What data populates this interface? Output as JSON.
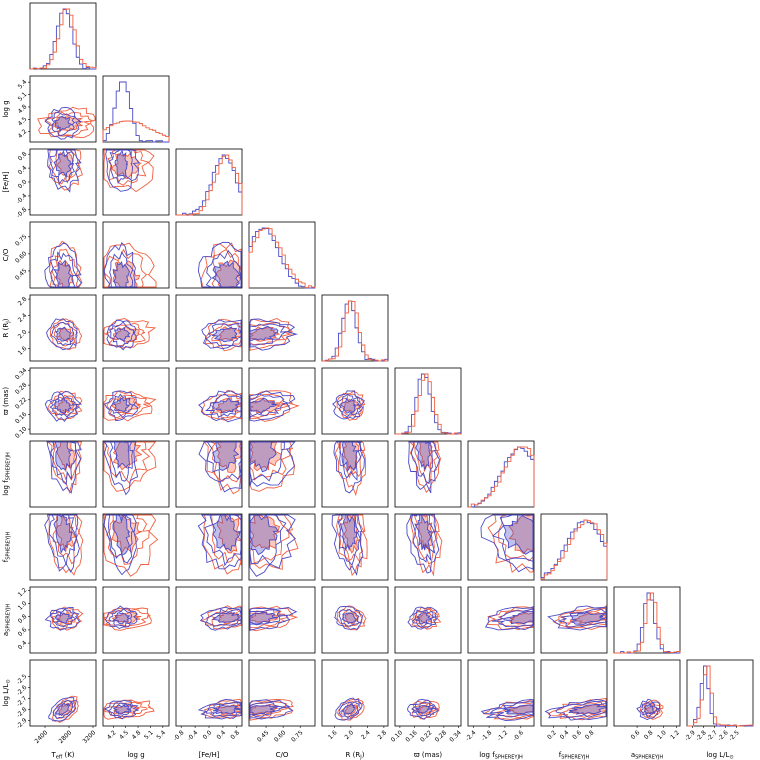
{
  "chart_data": {
    "type": "corner",
    "series": [
      {
        "name": "",
        "color": "#4a4ac8"
      },
      {
        "name": "",
        "color": "#f06040"
      }
    ],
    "parameters": [
      {
        "id": "teff",
        "label": "T",
        "sub": "eff",
        "unit": " (K)",
        "range": [
          2150,
          3250
        ],
        "ticks": [
          "2400",
          "2800",
          "3200"
        ],
        "tick_values": [
          2400,
          2800,
          3200
        ],
        "mean": 2700,
        "sd": 130,
        "skew": 1.2,
        "y_ticks": []
      },
      {
        "id": "logg",
        "label": "log g",
        "sub": "",
        "unit": "",
        "range": [
          3.95,
          5.55
        ],
        "ticks": [
          "4.2",
          "4.5",
          "4.8",
          "5.1",
          "5.4"
        ],
        "tick_values": [
          4.2,
          4.5,
          4.8,
          5.1,
          5.4
        ],
        "mean": 4.4,
        "sd": 0.18,
        "skew": 0.8,
        "y_ticks": [
          "4.2",
          "4.5",
          "4.8",
          "5.1",
          "5.4"
        ]
      },
      {
        "id": "feh",
        "label": "[Fe/H]",
        "sub": "",
        "unit": "",
        "range": [
          -0.95,
          0.95
        ],
        "ticks": [
          "-0.8",
          "-0.4",
          "0.0",
          "0.4",
          "0.8"
        ],
        "tick_values": [
          -0.8,
          -0.4,
          0.0,
          0.4,
          0.8
        ],
        "mean": 0.5,
        "sd": 0.35,
        "skew": -1.0,
        "y_ticks": [
          "-0.8",
          "-0.4",
          "0.0",
          "0.4",
          "0.8"
        ]
      },
      {
        "id": "co",
        "label": "C/O",
        "sub": "",
        "unit": "",
        "range": [
          0.3,
          0.88
        ],
        "ticks": [
          "0.45",
          "0.60",
          "0.75"
        ],
        "tick_values": [
          0.45,
          0.6,
          0.75
        ],
        "mean": 0.4,
        "sd": 0.14,
        "skew": 1.0,
        "y_ticks": [
          "0.45",
          "0.60",
          "0.75"
        ]
      },
      {
        "id": "radius",
        "label": "R",
        "sub": "",
        "unit": "  (R",
        "unit_sub": "J",
        "unit_end": ")",
        "range": [
          1.3,
          2.9
        ],
        "ticks": [
          "1.6",
          "2.0",
          "2.4",
          "2.8"
        ],
        "tick_values": [
          1.6,
          2.0,
          2.4,
          2.8
        ],
        "mean": 1.95,
        "sd": 0.17,
        "skew": 0.2,
        "y_ticks": [
          "1.6",
          "2.0",
          "2.4",
          "2.8"
        ]
      },
      {
        "id": "plx",
        "label": "ϖ",
        "sub": "",
        "unit": " (mas)",
        "range": [
          0.08,
          0.35
        ],
        "ticks": [
          "0.10",
          "0.16",
          "0.22",
          "0.28",
          "0.34"
        ],
        "tick_values": [
          0.1,
          0.16,
          0.22,
          0.28,
          0.34
        ],
        "mean": 0.195,
        "sd": 0.028,
        "skew": 0.3,
        "y_ticks": [
          "0.10",
          "0.16",
          "0.22",
          "0.28",
          "0.34"
        ]
      },
      {
        "id": "logf",
        "label": "log f",
        "sub": "SPHEREYJH",
        "unit": "",
        "range": [
          -2.6,
          -0.1
        ],
        "ticks": [
          "-2.4",
          "-1.8",
          "-1.2",
          "-0.6"
        ],
        "tick_values": [
          -2.4,
          -1.8,
          -1.2,
          -0.6
        ],
        "mean": -0.5,
        "sd": 0.7,
        "skew": -1.0,
        "y_ticks": []
      },
      {
        "id": "f",
        "label": "f",
        "sub": "SPHEREYJH",
        "unit": "",
        "range": [
          0.0,
          1.05
        ],
        "ticks": [
          "0.2",
          "0.4",
          "0.6",
          "0.8"
        ],
        "tick_values": [
          0.2,
          0.4,
          0.6,
          0.8
        ],
        "mean": 0.75,
        "sd": 0.3,
        "skew": -0.8,
        "y_ticks": []
      },
      {
        "id": "a",
        "label": "a",
        "sub": "SPHEREYJH",
        "unit": "",
        "range": [
          0.25,
          1.25
        ],
        "ticks": [
          "0.6",
          "0.8",
          "1.0",
          "1.2"
        ],
        "tick_values": [
          0.6,
          0.8,
          1.0,
          1.2
        ],
        "mean": 0.78,
        "sd": 0.08,
        "skew": 0.1,
        "y_ticks": [
          "0.4",
          "0.6",
          "0.8",
          "1.0",
          "1.2"
        ],
        "y_tick_values": [
          0.4,
          0.6,
          0.8,
          1.0,
          1.2
        ]
      },
      {
        "id": "logl",
        "label": "log L/L",
        "sub": "⊙",
        "unit": "",
        "range": [
          -2.95,
          -2.35
        ],
        "ticks": [
          "-2.9",
          "-2.8",
          "-2.7",
          "-2.6",
          "-2.5"
        ],
        "tick_values": [
          -2.9,
          -2.8,
          -2.7,
          -2.6,
          -2.5
        ],
        "mean": -2.8,
        "sd": 0.04,
        "skew": 2.0,
        "y_ticks": [
          "-2.9",
          "-2.8",
          "-2.7",
          "-2.6",
          "-2.5"
        ]
      }
    ]
  }
}
